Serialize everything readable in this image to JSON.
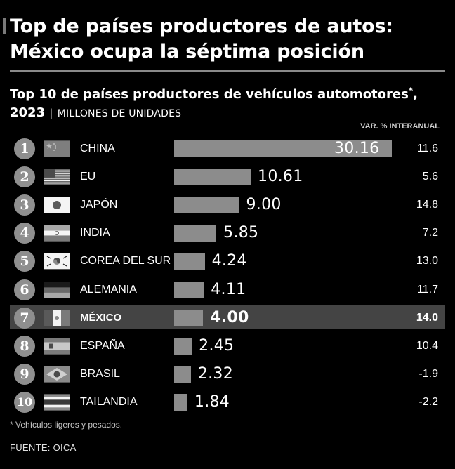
{
  "header": {
    "title_line1": "Top de países productores de autos:",
    "title_line2": "México ocupa la séptima posición"
  },
  "chart_data": {
    "type": "bar",
    "title": "Top 10 de países productores de vehículos automotores",
    "title_asterisk": "*",
    "title_year": "2023",
    "title_separator": "|",
    "units": "MILLONES DE UNIDADES",
    "column_header": "VAR. % INTERANUAL",
    "highlight_index": 6,
    "xlim": [
      0,
      30.16
    ],
    "categories": [
      "CHINA",
      "EU",
      "JAPÓN",
      "INDIA",
      "COREA DEL SUR",
      "ALEMANIA",
      "MÉXICO",
      "ESPAÑA",
      "BRASIL",
      "TAILANDIA"
    ],
    "ranks": [
      "1",
      "2",
      "3",
      "4",
      "5",
      "6",
      "7",
      "8",
      "9",
      "10"
    ],
    "values": [
      30.16,
      10.61,
      9.0,
      5.85,
      4.24,
      4.11,
      4.0,
      2.45,
      2.32,
      1.84
    ],
    "value_labels": [
      "30.16",
      "10.61",
      "9.00",
      "5.85",
      "4.24",
      "4.11",
      "4.00",
      "2.45",
      "2.32",
      "1.84"
    ],
    "yoy_change": [
      "11.6",
      "5.6",
      "14.8",
      "7.2",
      "13.0",
      "11.7",
      "14.0",
      "10.4",
      "-1.9",
      "-2.2"
    ],
    "flags": [
      "china-flag-icon",
      "usa-flag-icon",
      "japan-flag-icon",
      "india-flag-icon",
      "south-korea-flag-icon",
      "germany-flag-icon",
      "mexico-flag-icon",
      "spain-flag-icon",
      "brazil-flag-icon",
      "thailand-flag-icon"
    ]
  },
  "footnote": "* Vehículos ligeros y pesados.",
  "source": "FUENTE: OICA",
  "colors": {
    "background": "#000000",
    "bar": "#8c8c8c",
    "highlight_row": "#444444",
    "rank_circle": "#8f8f8f"
  }
}
